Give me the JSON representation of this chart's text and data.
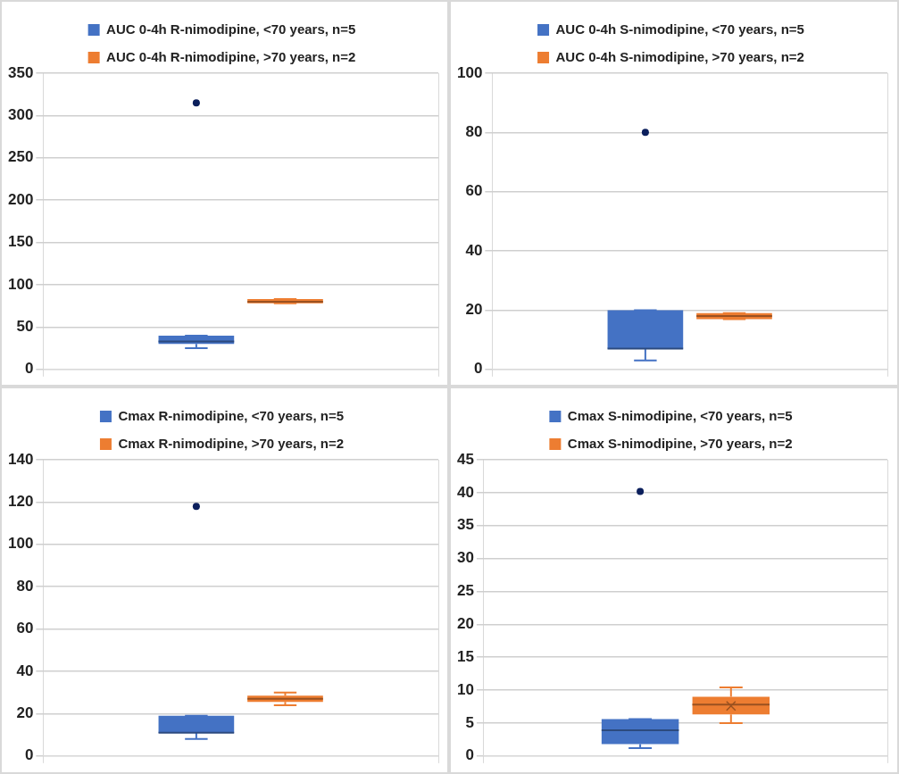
{
  "chart_data": [
    {
      "type": "box",
      "categories": [
        null
      ],
      "legend": "top",
      "grid": true,
      "tick_labels": "y",
      "ylim": [
        0,
        350
      ],
      "yticks": [
        0,
        50,
        100,
        150,
        200,
        250,
        300,
        350
      ],
      "series": [
        {
          "name": "AUC 0-4h R-nimodipine, <70 years, n=5",
          "color": "#4472c4",
          "boxes": [
            {
              "low": 25,
              "q1": 30,
              "median": 33,
              "q3": 40,
              "high": 40,
              "outliers": [
                315
              ]
            }
          ]
        },
        {
          "name": "AUC 0-4h R-nimodipine, >70 years, n=2",
          "color": "#ed7d31",
          "boxes": [
            {
              "low": 78,
              "q1": 78,
              "median": 80,
              "q3": 83,
              "high": 83
            }
          ]
        }
      ]
    },
    {
      "type": "box",
      "categories": [
        null
      ],
      "legend": "top",
      "grid": true,
      "tick_labels": "y",
      "ylim": [
        0,
        100
      ],
      "yticks": [
        0,
        20,
        40,
        60,
        80,
        100
      ],
      "series": [
        {
          "name": "AUC 0-4h S-nimodipine, <70 years, n=5",
          "color": "#4472c4",
          "boxes": [
            {
              "low": 3,
              "q1": 7,
              "median": 7,
              "q3": 20,
              "high": 20,
              "outliers": [
                80
              ]
            }
          ]
        },
        {
          "name": "AUC 0-4h S-nimodipine, >70 years, n=2",
          "color": "#ed7d31",
          "boxes": [
            {
              "low": 17,
              "q1": 17,
              "median": 18,
              "q3": 19,
              "high": 19
            }
          ]
        }
      ]
    },
    {
      "type": "box",
      "categories": [
        null
      ],
      "legend": "top",
      "grid": true,
      "tick_labels": "y",
      "ylim": [
        0,
        140
      ],
      "yticks": [
        0,
        20,
        40,
        60,
        80,
        100,
        120,
        140
      ],
      "series": [
        {
          "name": "Cmax R-nimodipine, <70 years, n=5",
          "color": "#4472c4",
          "boxes": [
            {
              "low": 8,
              "q1": 11,
              "median": 11,
              "q3": 19,
              "high": 19,
              "outliers": [
                118
              ]
            }
          ]
        },
        {
          "name": "Cmax R-nimodipine, >70 years, n=2",
          "color": "#ed7d31",
          "boxes": [
            {
              "low": 24,
              "q1": 25.5,
              "median": 27,
              "q3": 28.5,
              "high": 30
            }
          ]
        }
      ]
    },
    {
      "type": "box",
      "categories": [
        null
      ],
      "legend": "top",
      "grid": true,
      "tick_labels": "y",
      "ylim": [
        0,
        45
      ],
      "yticks": [
        0,
        5,
        10,
        15,
        20,
        25,
        30,
        35,
        40,
        45
      ],
      "series": [
        {
          "name": "Cmax S-nimodipine, <70 years, n=5",
          "color": "#4472c4",
          "boxes": [
            {
              "low": 1.2,
              "q1": 1.8,
              "median": 3.9,
              "q3": 5.6,
              "high": 5.6,
              "outliers": [
                40.2
              ]
            }
          ]
        },
        {
          "name": "Cmax S-nimodipine, >70 years, n=2",
          "color": "#ed7d31",
          "boxes": [
            {
              "low": 5,
              "q1": 6.3,
              "median": 7.8,
              "q3": 9,
              "high": 10.4,
              "mean": 7.6
            }
          ]
        }
      ]
    }
  ]
}
